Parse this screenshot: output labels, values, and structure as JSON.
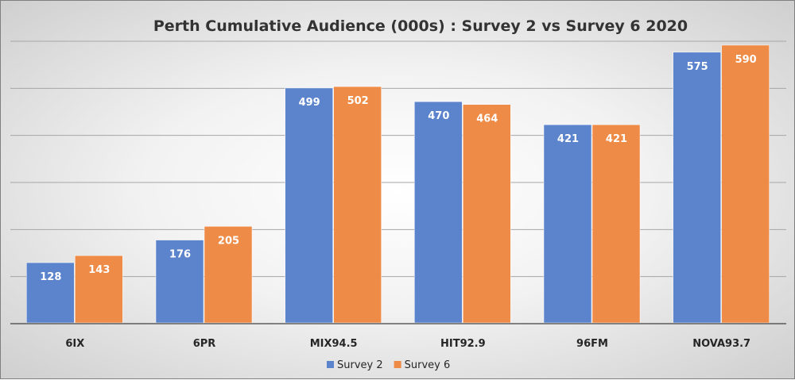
{
  "chart_data": {
    "type": "bar",
    "title": "Perth Cumulative Audience (000s) : Survey 2 vs Survey 6 2020",
    "xlabel": "",
    "ylabel": "",
    "categories": [
      "6IX",
      "6PR",
      "MIX94.5",
      "HIT92.9",
      "96FM",
      "NOVA93.7"
    ],
    "series": [
      {
        "name": "Survey 2",
        "values": [
          128,
          176,
          499,
          470,
          421,
          575
        ],
        "color": "#5b84cc"
      },
      {
        "name": "Survey 6",
        "values": [
          143,
          205,
          502,
          464,
          421,
          590
        ],
        "color": "#ee8b47"
      }
    ],
    "ylim": [
      0,
      600
    ],
    "grid": true,
    "legend_position": "bottom"
  }
}
